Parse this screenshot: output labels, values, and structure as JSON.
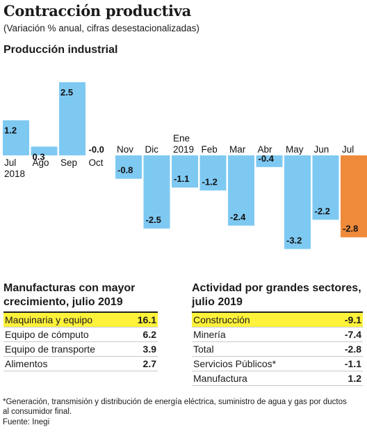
{
  "header": {
    "title": "Contracción productiva",
    "subtitle": "(Variación % anual, cifras desestacionalizadas)"
  },
  "section_title": "Producción industrial",
  "chart_data": {
    "type": "bar",
    "title": "Producción industrial",
    "categories": [
      [
        "Jul",
        "2018"
      ],
      [
        "Ago"
      ],
      [
        "Sep"
      ],
      [
        "Oct"
      ],
      [
        "Nov"
      ],
      [
        "Dic"
      ],
      [
        "Ene",
        "2019"
      ],
      [
        "Feb"
      ],
      [
        "Mar"
      ],
      [
        "Abr"
      ],
      [
        "May"
      ],
      [
        "Jun"
      ],
      [
        "Jul"
      ]
    ],
    "values": [
      1.2,
      0.3,
      2.5,
      -0.0,
      -0.8,
      -2.5,
      -1.1,
      -1.2,
      -2.4,
      -0.4,
      -3.2,
      -2.2,
      -2.8
    ],
    "value_labels": [
      "1.2",
      "0.3",
      "2.5",
      "-0.0",
      "-0.8",
      "-2.5",
      "-1.1",
      "-1.2",
      "-2.4",
      "-0.4",
      "-3.2",
      "-2.2",
      "-2.8"
    ],
    "highlight_index": 12,
    "colors": {
      "bar": "#7ec9f2",
      "highlight": "#ef8a3b"
    },
    "ylim": [
      -3.4,
      2.6
    ]
  },
  "manufacturas": {
    "title_line1": "Manufacturas con mayor",
    "title_line2": "crecimiento, julio 2019",
    "rows": [
      {
        "label": "Maquinaria y equipo",
        "value": "16.1",
        "highlight": true
      },
      {
        "label": "Equipo de cómputo",
        "value": "6.2",
        "highlight": false
      },
      {
        "label": "Equipo de transporte",
        "value": "3.9",
        "highlight": false
      },
      {
        "label": "Alimentos",
        "value": "2.7",
        "highlight": false
      }
    ]
  },
  "actividad": {
    "title_line1": "Actividad por grandes sectores,",
    "title_line2": "julio 2019",
    "rows": [
      {
        "label": "Construcción",
        "value": "-9.1",
        "highlight": true
      },
      {
        "label": "Minería",
        "value": "-7.4",
        "highlight": false
      },
      {
        "label": "Total",
        "value": "-2.8",
        "highlight": false
      },
      {
        "label": "Servicios Públicos*",
        "value": "-1.1",
        "highlight": false
      },
      {
        "label": "Manufactura",
        "value": "1.2",
        "highlight": false
      }
    ]
  },
  "footnote": "*Generación, transmisión y distribución de energía eléctrica, suministro de agua y gas por ductos al consumidor final.",
  "source": "Fuente: Inegi",
  "highlight_color": "#fff23a"
}
